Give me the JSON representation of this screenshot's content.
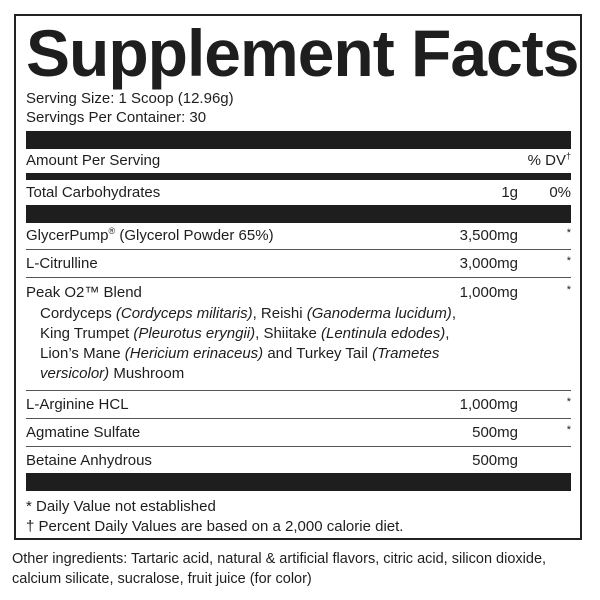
{
  "title": "Supplement Facts",
  "serving_size": "Serving Size: 1 Scoop (12.96g)",
  "servings_per_container": "Servings Per Container: 30",
  "header": {
    "amount_label": "Amount Per Serving",
    "dv_label": "% DV",
    "dv_mark": "†"
  },
  "carbs": {
    "name": "Total Carbohydrates",
    "amount": "1g",
    "dv": "0%"
  },
  "ingredients": [
    {
      "name": "GlycerPump",
      "mark": "®",
      "suffix": " (Glycerol Powder 65%)",
      "amount": "3,500mg",
      "dv": "*"
    },
    {
      "name": "L-Citrulline",
      "amount": "3,000mg",
      "dv": "*"
    },
    {
      "name": "Peak O2™ Blend",
      "amount": "1,000mg",
      "dv": "*"
    },
    {
      "name": "L-Arginine HCL",
      "amount": "1,000mg",
      "dv": "*"
    },
    {
      "name": "Agmatine Sulfate",
      "amount": "500mg",
      "dv": "*"
    },
    {
      "name": "Betaine Anhydrous",
      "amount": "500mg",
      "dv": ""
    }
  ],
  "blend_segments": [
    {
      "text": "Cordyceps ",
      "italic": false
    },
    {
      "text": "(Cordyceps militaris)",
      "italic": true
    },
    {
      "text": ", Reishi ",
      "italic": false
    },
    {
      "text": "(Ganoderma lucidum)",
      "italic": true
    },
    {
      "text": ", King Trumpet ",
      "italic": false
    },
    {
      "text": "(Pleurotus eryngii)",
      "italic": true
    },
    {
      "text": ", Shiitake ",
      "italic": false
    },
    {
      "text": "(Lentinula edodes)",
      "italic": true
    },
    {
      "text": ", Lion’s Mane ",
      "italic": false
    },
    {
      "text": "(Hericium erinaceus)",
      "italic": true
    },
    {
      "text": " and Turkey Tail ",
      "italic": false
    },
    {
      "text": "(Trametes versicolor)",
      "italic": true
    },
    {
      "text": " Mushroom",
      "italic": false
    }
  ],
  "footnotes": [
    "* Daily Value not established",
    "† Percent Daily Values are based on a 2,000 calorie diet."
  ],
  "other_ingredients": "Other ingredients: Tartaric acid, natural & artificial flavors, citric acid, silicon dioxide, calcium silicate, sucralose, fruit juice (for color)"
}
